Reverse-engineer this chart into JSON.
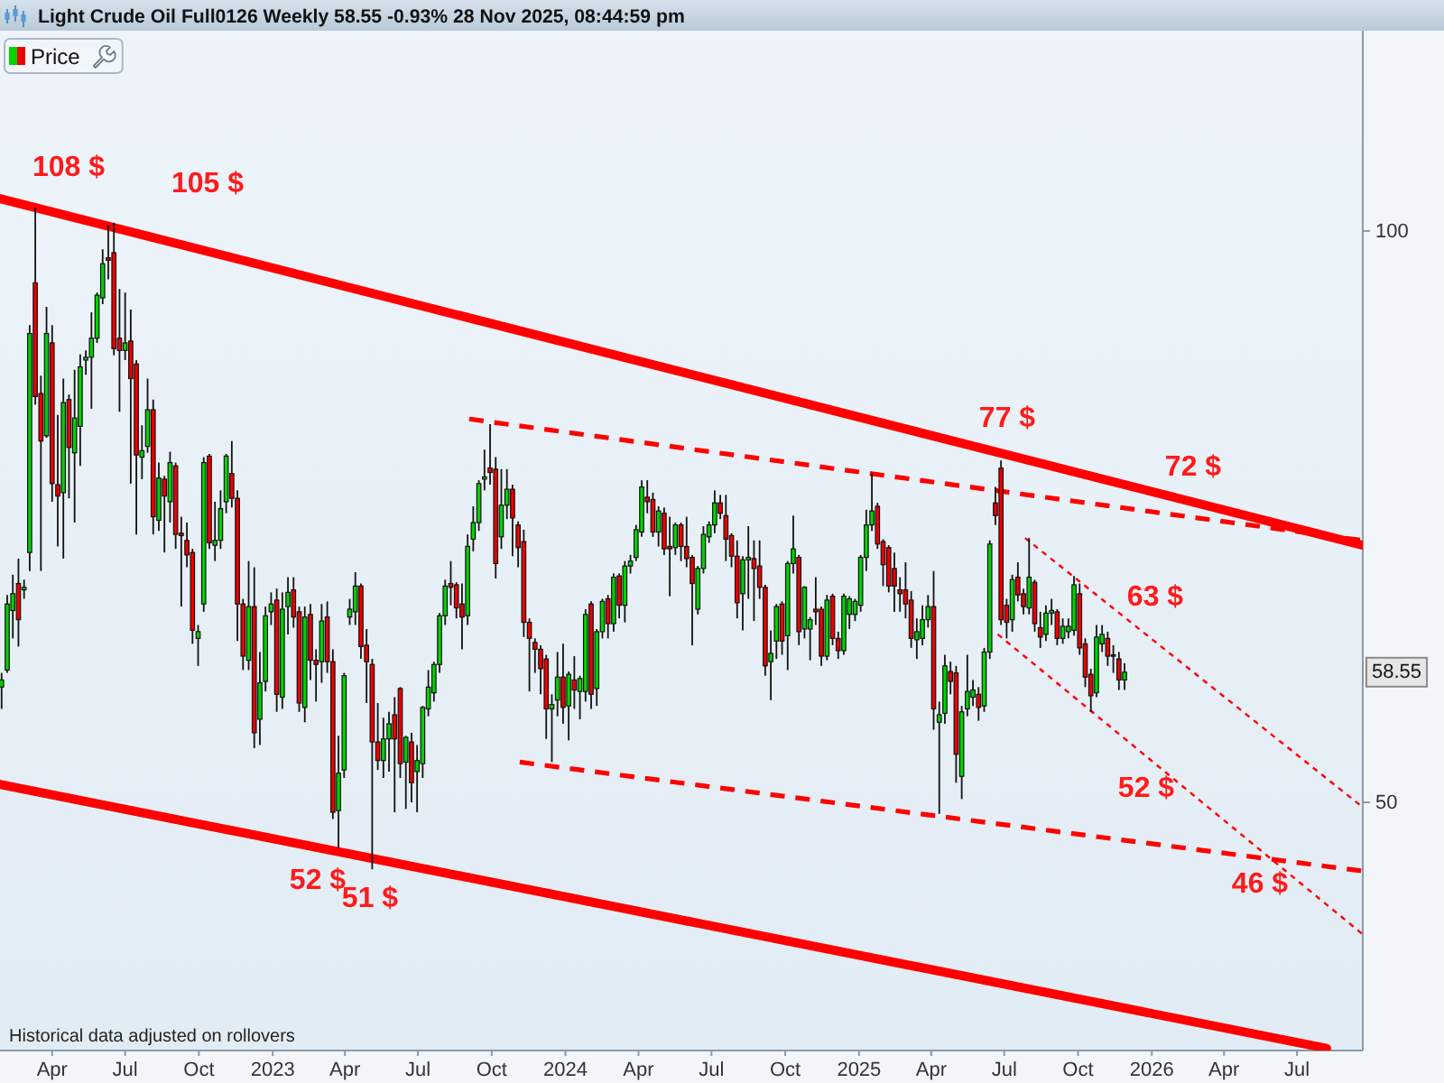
{
  "chart_data": {
    "type": "candlestick",
    "title": "Light Crude Oil Full0126 Weekly 58.55 -0.93% 28 Nov 2025, 08:44:59 pm",
    "xlim": [
      "2022-01-26",
      "2026-09-21"
    ],
    "ylim": [
      37,
      127.5
    ],
    "log": true,
    "legend": "top left",
    "xticks": [
      {
        "value": "2022-04-01",
        "label": "Apr"
      },
      {
        "value": "2022-07-01",
        "label": "Jul"
      },
      {
        "value": "2022-10-01",
        "label": "Oct"
      },
      {
        "value": "2023-01-01",
        "label": "2023"
      },
      {
        "value": "2023-04-01",
        "label": "Apr"
      },
      {
        "value": "2023-07-01",
        "label": "Jul"
      },
      {
        "value": "2023-10-01",
        "label": "Oct"
      },
      {
        "value": "2024-01-01",
        "label": "2024"
      },
      {
        "value": "2024-04-01",
        "label": "Apr"
      },
      {
        "value": "2024-07-01",
        "label": "Jul"
      },
      {
        "value": "2024-10-01",
        "label": "Oct"
      },
      {
        "value": "2025-01-01",
        "label": "2025"
      },
      {
        "value": "2025-04-01",
        "label": "Apr"
      },
      {
        "value": "2025-07-01",
        "label": "Jul"
      },
      {
        "value": "2025-10-01",
        "label": "Oct"
      },
      {
        "value": "2026-01-01",
        "label": "2026"
      },
      {
        "value": "2026-04-01",
        "label": "Apr"
      },
      {
        "value": "2026-07-01",
        "label": "Jul"
      }
    ],
    "yticks": [
      50,
      100
    ],
    "annotations": [
      "108 $",
      "105 $",
      "77 $",
      "72 $",
      "63 $",
      "52 $",
      "46 $",
      "52 $",
      "51 $",
      {
        "text": "58.55",
        "y": 58.55
      },
      "Historical data adjusted on rollovers"
    ],
    "series": [
      {
        "name": "Price",
        "x": [
          "2022-01-28",
          "2022-02-04",
          "2022-02-11",
          "2022-02-18",
          "2022-02-25",
          "2022-03-04",
          "2022-03-11",
          "2022-03-18",
          "2022-03-25",
          "2022-04-01",
          "2022-04-08",
          "2022-04-15",
          "2022-04-22",
          "2022-04-29",
          "2022-05-06",
          "2022-05-13",
          "2022-05-20",
          "2022-05-27",
          "2022-06-03",
          "2022-06-10",
          "2022-06-17",
          "2022-06-24",
          "2022-07-01",
          "2022-07-08",
          "2022-07-15",
          "2022-07-22",
          "2022-07-29",
          "2022-08-05",
          "2022-08-12",
          "2022-08-19",
          "2022-08-26",
          "2022-09-02",
          "2022-09-09",
          "2022-09-16",
          "2022-09-23",
          "2022-09-30",
          "2022-10-07",
          "2022-10-14",
          "2022-10-21",
          "2022-10-28",
          "2022-11-04",
          "2022-11-11",
          "2022-11-18",
          "2022-11-25",
          "2022-12-02",
          "2022-12-09",
          "2022-12-16",
          "2022-12-23",
          "2022-12-30",
          "2023-01-06",
          "2023-01-13",
          "2023-01-20",
          "2023-01-27",
          "2023-02-03",
          "2023-02-10",
          "2023-02-17",
          "2023-02-24",
          "2023-03-03",
          "2023-03-10",
          "2023-03-17",
          "2023-03-24",
          "2023-03-31",
          "2023-04-07",
          "2023-04-14",
          "2023-04-21",
          "2023-04-28",
          "2023-05-05",
          "2023-05-12",
          "2023-05-19",
          "2023-05-26",
          "2023-06-02",
          "2023-06-09",
          "2023-06-16",
          "2023-06-23",
          "2023-06-30",
          "2023-07-07",
          "2023-07-14",
          "2023-07-21",
          "2023-07-28",
          "2023-08-04",
          "2023-08-11",
          "2023-08-18",
          "2023-08-25",
          "2023-09-01",
          "2023-09-08",
          "2023-09-15",
          "2023-09-22",
          "2023-09-29",
          "2023-10-06",
          "2023-10-13",
          "2023-10-20",
          "2023-10-27",
          "2023-11-03",
          "2023-11-10",
          "2023-11-17",
          "2023-11-24",
          "2023-12-01",
          "2023-12-08",
          "2023-12-15",
          "2023-12-22",
          "2023-12-29",
          "2024-01-05",
          "2024-01-12",
          "2024-01-19",
          "2024-01-26",
          "2024-02-02",
          "2024-02-09",
          "2024-02-16",
          "2024-02-23",
          "2024-03-01",
          "2024-03-08",
          "2024-03-15",
          "2024-03-22",
          "2024-03-29",
          "2024-04-05",
          "2024-04-12",
          "2024-04-19",
          "2024-04-26",
          "2024-05-03",
          "2024-05-10",
          "2024-05-17",
          "2024-05-24",
          "2024-05-31",
          "2024-06-07",
          "2024-06-14",
          "2024-06-21",
          "2024-06-28",
          "2024-07-05",
          "2024-07-12",
          "2024-07-19",
          "2024-07-26",
          "2024-08-02",
          "2024-08-09",
          "2024-08-16",
          "2024-08-23",
          "2024-08-30",
          "2024-09-06",
          "2024-09-13",
          "2024-09-20",
          "2024-09-27",
          "2024-10-04",
          "2024-10-11",
          "2024-10-18",
          "2024-10-25",
          "2024-11-01",
          "2024-11-08",
          "2024-11-15",
          "2024-11-22",
          "2024-11-29",
          "2024-12-06",
          "2024-12-13",
          "2024-12-20",
          "2024-12-27",
          "2025-01-03",
          "2025-01-10",
          "2025-01-17",
          "2025-01-24",
          "2025-01-31",
          "2025-02-07",
          "2025-02-14",
          "2025-02-21",
          "2025-02-28",
          "2025-03-07",
          "2025-03-14",
          "2025-03-21",
          "2025-03-28",
          "2025-04-04",
          "2025-04-11",
          "2025-04-18",
          "2025-04-25",
          "2025-05-02",
          "2025-05-09",
          "2025-05-16",
          "2025-05-23",
          "2025-05-30",
          "2025-06-06",
          "2025-06-13",
          "2025-06-20",
          "2025-06-27",
          "2025-07-04",
          "2025-07-11",
          "2025-07-18",
          "2025-07-25",
          "2025-08-01",
          "2025-08-08",
          "2025-08-15",
          "2025-08-22",
          "2025-08-29",
          "2025-09-05",
          "2025-09-12",
          "2025-09-19",
          "2025-09-26",
          "2025-10-03",
          "2025-10-10",
          "2025-10-17",
          "2025-10-24",
          "2025-10-31",
          "2025-11-07",
          "2025-11-14",
          "2025-11-21",
          "2025-11-28"
        ],
        "ohlc": [
          [
            57.5,
            58.5,
            56,
            58
          ],
          [
            58.7,
            64.3,
            58.5,
            63.6
          ],
          [
            63.1,
            65.9,
            61,
            64.4
          ],
          [
            65.2,
            67.2,
            60.4,
            62.4
          ],
          [
            64.7,
            65.5,
            64,
            64.9
          ],
          [
            67.7,
            89.2,
            66.2,
            88.3
          ],
          [
            93.9,
            102.9,
            81,
            81.8
          ],
          [
            82.1,
            83.9,
            66.2,
            77.5
          ],
          [
            78,
            91.2,
            77.8,
            88.3
          ],
          [
            87.3,
            89.2,
            72,
            73.6
          ],
          [
            73.5,
            80,
            68.2,
            72.5
          ],
          [
            72.8,
            83.6,
            67.2,
            81.2
          ],
          [
            81.5,
            82,
            72.3,
            76.9
          ],
          [
            76.4,
            84.5,
            70.2,
            79.7
          ],
          [
            78.9,
            86.1,
            75.2,
            84.8
          ],
          [
            85.5,
            86.5,
            84,
            85.8
          ],
          [
            85.8,
            90.6,
            80.6,
            87.8
          ],
          [
            87.8,
            92.8,
            87.3,
            92.5
          ],
          [
            92.2,
            97.8,
            91.5,
            96.1
          ],
          [
            96.8,
            100.7,
            94.3,
            96.5
          ],
          [
            97.4,
            101,
            86,
            86.7
          ],
          [
            87.8,
            93.2,
            80.3,
            86.5
          ],
          [
            86.5,
            92.8,
            85.5,
            87.3
          ],
          [
            87.5,
            90.9,
            73.6,
            83.6
          ],
          [
            85.1,
            85.5,
            69.2,
            76.2
          ],
          [
            76,
            79,
            74,
            76.6
          ],
          [
            77,
            83.6,
            76.4,
            80.5
          ],
          [
            80.5,
            81.5,
            69.2,
            70.7
          ],
          [
            70.4,
            75.5,
            69.5,
            74.1
          ],
          [
            74,
            74.3,
            67.7,
            72.5
          ],
          [
            72,
            76.5,
            70.2,
            75.5
          ],
          [
            75.2,
            75.5,
            68,
            69.2
          ],
          [
            69.3,
            70.7,
            63.4,
            69.1
          ],
          [
            68.7,
            70.2,
            66.5,
            67.5
          ],
          [
            67.7,
            68,
            60.6,
            61.6
          ],
          [
            61,
            62,
            59,
            61.5
          ],
          [
            63.6,
            76,
            63,
            75.5
          ],
          [
            76.1,
            76.3,
            68,
            68.5
          ],
          [
            68.3,
            72,
            67,
            68.7
          ],
          [
            68.7,
            73,
            68,
            71.4
          ],
          [
            72,
            76.3,
            71,
            76.1
          ],
          [
            74.5,
            77.5,
            71.5,
            72.3
          ],
          [
            72.3,
            73,
            60.8,
            63.6
          ],
          [
            63.6,
            64,
            58.7,
            59.7
          ],
          [
            59.4,
            67,
            58.7,
            63.4
          ],
          [
            63.4,
            66.5,
            53.4,
            54.4
          ],
          [
            55.3,
            60,
            53.6,
            57.8
          ],
          [
            57.9,
            63.4,
            57.2,
            62.7
          ],
          [
            63,
            64.5,
            62,
            63.6
          ],
          [
            63.9,
            64.8,
            55.8,
            57
          ],
          [
            56.8,
            64.5,
            56,
            63.2
          ],
          [
            63.4,
            65.7,
            61.3,
            64.5
          ],
          [
            64.7,
            65.7,
            61.8,
            62.6
          ],
          [
            63,
            63.4,
            55.8,
            56.4
          ],
          [
            56.1,
            63.4,
            55.1,
            62.6
          ],
          [
            62.8,
            63.6,
            58,
            59.4
          ],
          [
            59.4,
            60.2,
            56.5,
            59.1
          ],
          [
            59.3,
            63.6,
            57.8,
            62.3
          ],
          [
            62.6,
            63.8,
            58.5,
            59.3
          ],
          [
            59.3,
            60.2,
            49,
            49.4
          ],
          [
            49.5,
            54.2,
            47.3,
            51.8
          ],
          [
            52,
            58.5,
            51.5,
            58.3
          ],
          [
            62.6,
            64,
            62,
            63.2
          ],
          [
            63,
            66.1,
            62,
            65
          ],
          [
            65,
            65.2,
            59.5,
            60.4
          ],
          [
            60.5,
            61.7,
            56.4,
            59.3
          ],
          [
            59.1,
            59.5,
            46.1,
            53.8
          ],
          [
            53.8,
            56.4,
            52,
            52.6
          ],
          [
            52.6,
            55.4,
            51.5,
            54
          ],
          [
            54,
            55.8,
            51.9,
            55
          ],
          [
            55.6,
            56.8,
            49.4,
            54
          ],
          [
            57.4,
            57.5,
            51.5,
            52.4
          ],
          [
            52.5,
            54.2,
            49.6,
            54.1
          ],
          [
            53.8,
            54.4,
            50,
            51.2
          ],
          [
            51.9,
            53.6,
            49.4,
            52.6
          ],
          [
            52.4,
            56.2,
            51.5,
            56.1
          ],
          [
            56,
            58.7,
            55.5,
            57.5
          ],
          [
            57.1,
            59.3,
            56.5,
            59.1
          ],
          [
            59.1,
            62.9,
            58.5,
            62.7
          ],
          [
            62.7,
            65.5,
            62,
            65
          ],
          [
            65.2,
            67,
            63.5,
            64.9
          ],
          [
            65.1,
            65.3,
            62.5,
            63.3
          ],
          [
            63.6,
            65.2,
            60.2,
            62.6
          ],
          [
            62.7,
            69.2,
            62,
            68.2
          ],
          [
            68.8,
            71.6,
            67.8,
            70.2
          ],
          [
            70.2,
            73.9,
            69.5,
            73.6
          ],
          [
            74,
            76.7,
            73,
            74.2
          ],
          [
            75,
            79.1,
            73.5,
            74.6
          ],
          [
            74.9,
            76,
            65.6,
            66.8
          ],
          [
            69,
            74.9,
            68,
            71.7
          ],
          [
            71.7,
            74.9,
            70.5,
            73.1
          ],
          [
            73.1,
            73.5,
            67.4,
            70.6
          ],
          [
            70,
            70.3,
            66.5,
            68.1
          ],
          [
            68.6,
            69.6,
            61.1,
            62.2
          ],
          [
            62.2,
            62.5,
            57.2,
            61
          ],
          [
            60.7,
            61,
            58.5,
            60.2
          ],
          [
            60.2,
            60.5,
            57,
            58.8
          ],
          [
            59.5,
            59.8,
            54,
            56
          ],
          [
            56,
            57,
            52.5,
            56.3
          ],
          [
            56.6,
            60,
            55.5,
            58.2
          ],
          [
            58.2,
            60.6,
            55,
            56.1
          ],
          [
            56.2,
            58.6,
            53.9,
            58.4
          ],
          [
            58,
            59.7,
            56,
            57.3
          ],
          [
            57.2,
            58.3,
            55.3,
            58.1
          ],
          [
            57.2,
            63.2,
            56.5,
            62.8
          ],
          [
            63.6,
            63.8,
            56,
            57
          ],
          [
            57.4,
            61.7,
            56.2,
            61.5
          ],
          [
            61.5,
            64,
            61,
            63.8
          ],
          [
            64,
            64.3,
            61,
            62.1
          ],
          [
            62.1,
            66,
            61.5,
            65.7
          ],
          [
            65.8,
            66,
            62.5,
            63.5
          ],
          [
            63.5,
            67,
            62.2,
            66.6
          ],
          [
            66.6,
            67.5,
            66,
            67
          ],
          [
            67.3,
            70,
            67,
            69.6
          ],
          [
            69.4,
            73.9,
            69,
            73.3
          ],
          [
            72.4,
            73.9,
            71,
            72
          ],
          [
            72.2,
            72.8,
            69,
            69.4
          ],
          [
            69.4,
            71.6,
            68.2,
            71.2
          ],
          [
            71,
            71.5,
            67.5,
            68
          ],
          [
            68.2,
            70.7,
            64.2,
            68
          ],
          [
            68.1,
            70.2,
            67.5,
            70
          ],
          [
            70,
            70.2,
            67,
            68.2
          ],
          [
            68.2,
            70.7,
            66.5,
            67.2
          ],
          [
            67.3,
            67.5,
            60.5,
            65.2
          ],
          [
            63.2,
            66.6,
            62.8,
            66.4
          ],
          [
            66.4,
            69.9,
            66,
            69.2
          ],
          [
            69,
            70.3,
            68.5,
            70
          ],
          [
            70,
            73,
            69.3,
            71.9
          ],
          [
            71.9,
            72.6,
            70.5,
            71
          ],
          [
            70.8,
            72.6,
            67,
            68.8
          ],
          [
            69.1,
            69.3,
            66.5,
            67.4
          ],
          [
            67.4,
            68.7,
            62.5,
            63.7
          ],
          [
            64.4,
            67.4,
            61.6,
            67.1
          ],
          [
            67.1,
            69.9,
            64,
            67.3
          ],
          [
            67.2,
            68.7,
            62.3,
            66.4
          ],
          [
            66.6,
            68.7,
            64,
            64.9
          ],
          [
            64.9,
            65.1,
            58.3,
            59
          ],
          [
            59.3,
            61.6,
            56.6,
            59.9
          ],
          [
            60.8,
            63.6,
            59.5,
            63.4
          ],
          [
            63.6,
            63.8,
            59.8,
            60.8
          ],
          [
            61.2,
            67,
            58.7,
            66.8
          ],
          [
            66.8,
            70.8,
            66,
            68
          ],
          [
            67.3,
            67.5,
            60.5,
            61.5
          ],
          [
            61.7,
            65,
            61,
            64.9
          ],
          [
            61.7,
            62.6,
            59.4,
            62.4
          ],
          [
            63.2,
            65.7,
            62,
            63
          ],
          [
            63.2,
            63.4,
            59,
            59.7
          ],
          [
            59.7,
            64.3,
            59.4,
            63.9
          ],
          [
            64.2,
            64.4,
            60.5,
            61
          ],
          [
            61,
            61.5,
            59.5,
            60.1
          ],
          [
            60.1,
            64.4,
            59.8,
            64.2
          ],
          [
            62.8,
            64.2,
            61.7,
            64
          ],
          [
            62.8,
            64,
            62.3,
            63.8
          ],
          [
            63.5,
            67.5,
            63,
            67.3
          ],
          [
            67.3,
            71.3,
            66.2,
            70
          ],
          [
            70,
            74.5,
            69.5,
            71.2
          ],
          [
            71.6,
            71.9,
            68,
            68.4
          ],
          [
            68.6,
            68.8,
            65,
            66.7
          ],
          [
            68.1,
            68.3,
            64.5,
            65
          ],
          [
            66.4,
            67.7,
            63,
            65
          ],
          [
            64.7,
            65.7,
            63,
            64.4
          ],
          [
            64.7,
            66.9,
            62.5,
            63.6
          ],
          [
            63.9,
            64.6,
            60.3,
            61
          ],
          [
            60.9,
            62.5,
            59.5,
            61.5
          ],
          [
            61,
            63.5,
            60.5,
            62.4
          ],
          [
            62.4,
            64.3,
            61.8,
            63.4
          ],
          [
            63.4,
            66.2,
            54.6,
            56
          ],
          [
            55.1,
            56.5,
            49.3,
            55.6
          ],
          [
            55.7,
            59.8,
            55,
            59
          ],
          [
            58.6,
            59.3,
            57,
            57.9
          ],
          [
            58.5,
            59,
            51.2,
            53
          ],
          [
            51.6,
            56.2,
            50.2,
            55.8
          ],
          [
            56,
            59.8,
            55.5,
            57.2
          ],
          [
            56.8,
            58,
            56.2,
            57.3
          ],
          [
            57,
            57.5,
            55.2,
            56.1
          ],
          [
            56.2,
            60.3,
            55.8,
            60
          ],
          [
            60,
            68.7,
            59.5,
            68.4
          ],
          [
            71.9,
            73.3,
            70,
            70.8
          ],
          [
            75,
            75.7,
            62,
            62.4
          ],
          [
            63.5,
            64,
            61,
            62.2
          ],
          [
            62.4,
            65.9,
            61.5,
            65.5
          ],
          [
            65.7,
            66.9,
            63.8,
            64.3
          ],
          [
            64.4,
            64.8,
            62.8,
            63.4
          ],
          [
            63.3,
            68.9,
            62.8,
            65.7
          ],
          [
            65.3,
            65.5,
            61.5,
            62.1
          ],
          [
            61.8,
            63,
            60.3,
            61.1
          ],
          [
            61.3,
            63.5,
            60.8,
            62.9
          ],
          [
            62.9,
            64,
            62,
            63.1
          ],
          [
            63,
            63.2,
            60.5,
            61
          ],
          [
            61,
            62.5,
            60.6,
            61.9
          ],
          [
            61.5,
            62.5,
            61,
            61.9
          ],
          [
            61.6,
            65.8,
            61.2,
            65.1
          ],
          [
            64.4,
            65.2,
            59.8,
            60.3
          ],
          [
            60.6,
            61,
            57.5,
            58.2
          ],
          [
            58.4,
            58.8,
            55.8,
            56.9
          ],
          [
            57.1,
            62,
            56.8,
            61.1
          ],
          [
            60.6,
            62,
            60,
            61.3
          ],
          [
            61,
            61.5,
            59,
            59.7
          ],
          [
            59.8,
            60.5,
            58.5,
            59.7
          ],
          [
            59.5,
            60,
            57.3,
            58
          ],
          [
            58,
            59.2,
            57.3,
            58.55
          ]
        ]
      },
      {
        "type": "line",
        "color": "#ff0000",
        "line_style": "solid",
        "x": [
          "2022-01-26",
          "2026-09-21"
        ],
        "values": [
          104,
          68.3
        ]
      },
      {
        "type": "line",
        "color": "#ff0000",
        "line_style": "solid",
        "x": [
          "2022-01-26",
          "2026-08-07"
        ],
        "values": [
          51.1,
          37.1
        ]
      },
      {
        "type": "line",
        "color": "#ff0000",
        "line_style": "dashed",
        "x": [
          "2023-09-03",
          "2026-09-21"
        ],
        "values": [
          79.6,
          68.7
        ]
      },
      {
        "type": "line",
        "color": "#ff0000",
        "line_style": "dashed",
        "x": [
          "2023-11-05",
          "2026-09-21"
        ],
        "values": [
          52.5,
          46
        ]
      },
      {
        "type": "line",
        "color": "#ff0000",
        "line_style": "dotted",
        "x": [
          "2025-07-27",
          "2026-09-21"
        ],
        "values": [
          68.9,
          49.7
        ]
      },
      {
        "type": "line",
        "color": "#ff0000",
        "line_style": "dotted",
        "x": [
          "2025-06-23",
          "2026-09-21"
        ],
        "values": [
          61.3,
          42.6
        ]
      }
    ]
  }
}
